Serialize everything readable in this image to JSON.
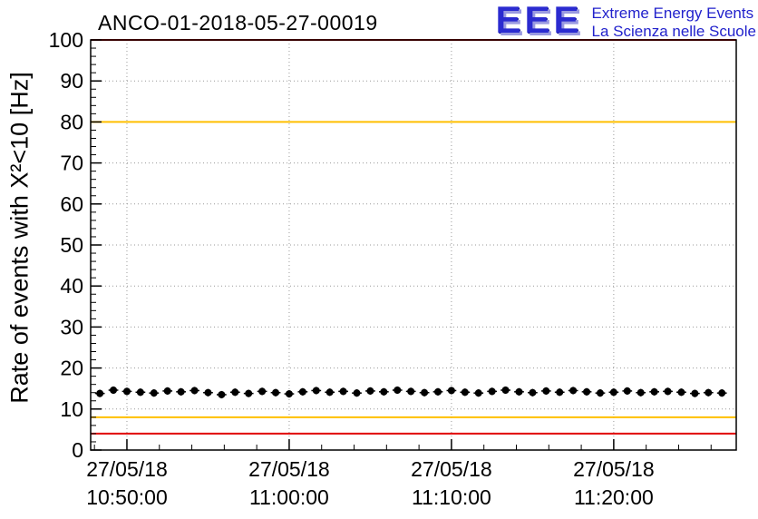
{
  "header": {
    "title": "ANCO-01-2018-05-27-00019",
    "logo": {
      "acronym": "EEE",
      "line1": "Extreme Energy Events",
      "line2": "La Scienza nelle Scuole"
    }
  },
  "colors": {
    "grid": "#999999",
    "frame": "#000000",
    "logo_blue": "#2222cc"
  },
  "chart_data": {
    "type": "scatter",
    "title": "ANCO-01-2018-05-27-00019",
    "ylabel": "Rate of events with X²<10 [Hz]",
    "ylim": [
      0,
      100
    ],
    "y_major_ticks": [
      0,
      10,
      20,
      30,
      40,
      50,
      60,
      70,
      80,
      90,
      100
    ],
    "y_minor_step": 2,
    "x_domain": [
      -134,
      2253
    ],
    "x_minor_step": 120,
    "x_ticks": [
      {
        "t": 0,
        "date": "27/05/18",
        "time": "10:50:00"
      },
      {
        "t": 600,
        "date": "27/05/18",
        "time": "11:00:00"
      },
      {
        "t": 1200,
        "date": "27/05/18",
        "time": "11:10:00"
      },
      {
        "t": 1800,
        "date": "27/05/18",
        "time": "11:20:00"
      }
    ],
    "grid": true,
    "legend": "none",
    "threshold_lines": [
      {
        "y": 100,
        "color": "#e10000",
        "name": "upper-alarm"
      },
      {
        "y": 80,
        "color": "#ffbf00",
        "name": "upper-warning"
      },
      {
        "y": 8,
        "color": "#ffbf00",
        "name": "lower-warning"
      },
      {
        "y": 4,
        "color": "#e10000",
        "name": "lower-alarm"
      }
    ],
    "series": [
      {
        "name": "event-rate",
        "color": "#000000",
        "marker": "circle",
        "x_err": 18,
        "y_err": 0.9,
        "t": [
          -100,
          -50,
          0,
          50,
          100,
          150,
          200,
          250,
          300,
          350,
          400,
          450,
          500,
          550,
          600,
          650,
          700,
          750,
          800,
          850,
          900,
          950,
          1000,
          1050,
          1100,
          1150,
          1200,
          1250,
          1300,
          1350,
          1400,
          1450,
          1500,
          1550,
          1600,
          1650,
          1700,
          1750,
          1800,
          1850,
          1900,
          1950,
          2000,
          2050,
          2100,
          2150,
          2200
        ],
        "y": [
          13.8,
          14.6,
          14.3,
          14.1,
          13.9,
          14.4,
          14.2,
          14.5,
          14.0,
          13.5,
          14.1,
          13.8,
          14.3,
          14.0,
          13.7,
          14.2,
          14.5,
          14.1,
          14.3,
          13.9,
          14.4,
          14.2,
          14.6,
          14.3,
          14.0,
          14.2,
          14.5,
          14.1,
          13.9,
          14.3,
          14.6,
          14.2,
          14.0,
          14.4,
          14.1,
          14.5,
          14.2,
          13.9,
          14.1,
          14.4,
          14.0,
          14.2,
          14.3,
          14.1,
          13.8,
          14.0,
          13.9
        ]
      }
    ]
  }
}
